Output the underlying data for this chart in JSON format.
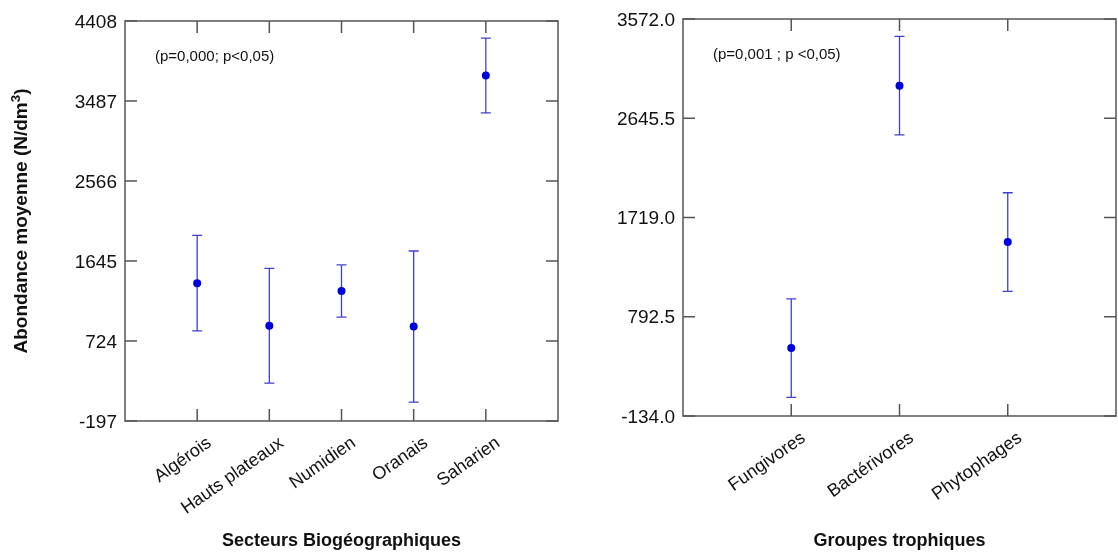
{
  "chart_data": [
    {
      "type": "scatter",
      "xlabel": "Secteurs Biogéographiques",
      "ylabel": "Abondance moyenne (N/dm$^{3}$)",
      "annotations": [
        "(p=0,000; p<0,05)"
      ],
      "categories": [
        "Algérois",
        "Hauts plateaux",
        "Numidien",
        "Oranais",
        "Saharien"
      ],
      "series": [
        {
          "color": "#0000dd",
          "values": [
            1390,
            900,
            1300,
            890,
            3780
          ],
          "errors": [
            550,
            660,
            300,
            870,
            430
          ]
        }
      ],
      "ylim": [
        -197,
        4408
      ],
      "yticks": [
        -197,
        724,
        1645,
        2566,
        3487,
        4408
      ],
      "marker": "circle"
    },
    {
      "type": "scatter",
      "xlabel": "Groupes trophiques",
      "annotations": [
        "(p=0,001 ; p <0,05)"
      ],
      "categories": [
        "Fungivores",
        "Bactérivores",
        "Phytophages"
      ],
      "series": [
        {
          "color": "#0000dd",
          "values": [
            500,
            2950,
            1490
          ],
          "errors": [
            460,
            460,
            460
          ]
        }
      ],
      "ylim": [
        -134,
        3572
      ],
      "yticks": [
        {
          "value": -134,
          "label": "-134.0"
        },
        {
          "value": 792.5,
          "label": "792.5"
        },
        {
          "value": 1719,
          "label": "1719.0"
        },
        {
          "value": 2645.5,
          "label": "2645.5"
        },
        {
          "value": 3572,
          "label": "3572.0"
        }
      ],
      "marker": "circle"
    }
  ]
}
